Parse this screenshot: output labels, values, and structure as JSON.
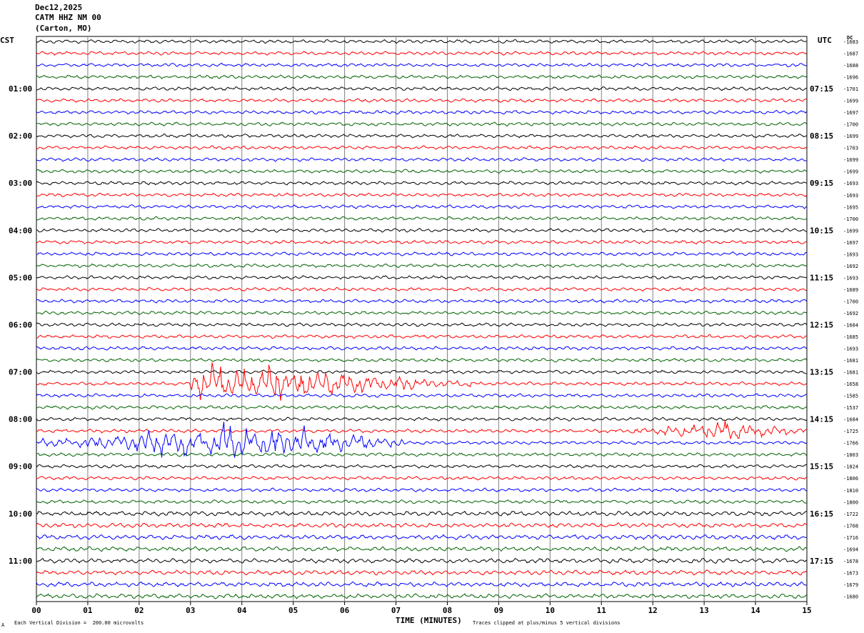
{
  "header": {
    "date": "Dec12,2025",
    "station": "CATM HHZ NM 00",
    "location": "(Carton, MO)"
  },
  "left_timezone": "CST",
  "right_timezone": "UTC",
  "right_column_header": "DC",
  "footer": {
    "scale_note": "Each Vertical Division =  200.00 microvolts",
    "clip_note": "Traces clipped at plus/minus 5 vertical divisions",
    "corner_mark": "A"
  },
  "colors": {
    "trace_cycle": [
      "#000000",
      "#ff0000",
      "#0000ff",
      "#006400"
    ],
    "grid": "#808080"
  },
  "chart_data": {
    "type": "line",
    "subtype": "helicorder",
    "xlabel": "TIME (MINUTES)",
    "x_ticks": [
      "00",
      "01",
      "02",
      "03",
      "04",
      "05",
      "06",
      "07",
      "08",
      "09",
      "10",
      "11",
      "12",
      "13",
      "14",
      "15"
    ],
    "xlim": [
      0,
      15
    ],
    "left_hour_labels": [
      "01:00",
      "02:00",
      "03:00",
      "04:00",
      "05:00",
      "06:00",
      "07:00",
      "08:00",
      "09:00",
      "10:00",
      "11:00"
    ],
    "right_hour_labels": [
      "07:15",
      "08:15",
      "09:15",
      "10:15",
      "11:15",
      "12:15",
      "13:15",
      "14:15",
      "15:15",
      "16:15",
      "17:15"
    ],
    "dc_offsets": [
      -1683,
      -1687,
      -1688,
      -1696,
      -1701,
      -1699,
      -1697,
      -1700,
      -1699,
      -1703,
      -1699,
      -1699,
      -1693,
      -1693,
      -1695,
      -1700,
      -1699,
      -1697,
      -1693,
      -1692,
      -1693,
      -1689,
      -1700,
      -1692,
      -1684,
      -1685,
      -1693,
      -1681,
      -1681,
      -1658,
      -1585,
      -1537,
      -1684,
      -1725,
      -1766,
      -1803,
      -1824,
      -1806,
      -1810,
      -1800,
      -1722,
      -1708,
      -1716,
      -1694,
      -1678,
      -1673,
      -1679,
      -1680
    ],
    "traces_per_hour": 4,
    "trace_count": 48,
    "events": [
      {
        "trace": 29,
        "start_min": 3.0,
        "end_min": 8.5,
        "peak_min": 3.8,
        "amplitude": "large"
      },
      {
        "trace": 34,
        "start_min": 0.0,
        "end_min": 7.2,
        "peak_min": 3.8,
        "amplitude": "large"
      },
      {
        "trace": 33,
        "start_min": 11.5,
        "end_min": 15.0,
        "peak_min": 13.3,
        "amplitude": "moderate"
      }
    ]
  }
}
